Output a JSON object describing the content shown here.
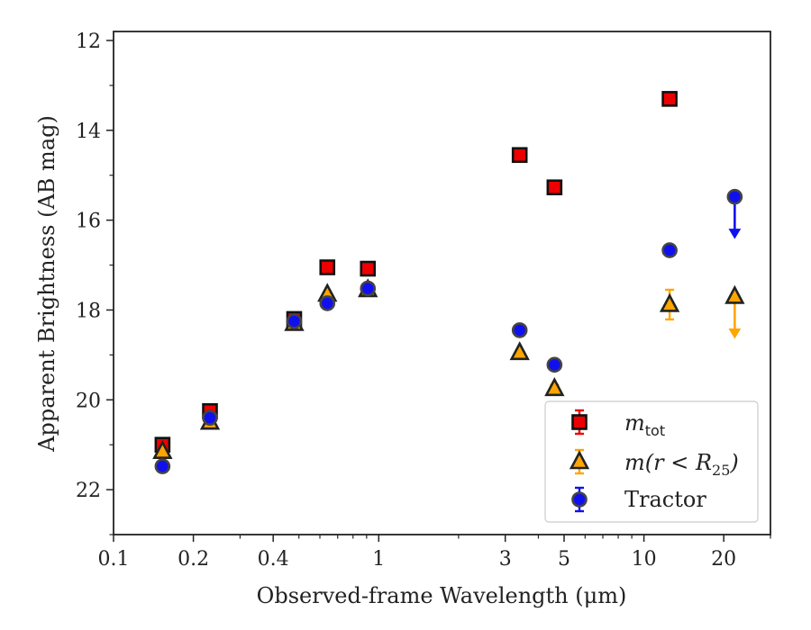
{
  "chart_data": {
    "type": "scatter",
    "xlabel": "Observed-frame Wavelength (μm)",
    "ylabel": "Apparent Brightness (AB mag)",
    "x_scale": "log",
    "xlim": [
      0.1,
      30
    ],
    "ylim": [
      23,
      11.8
    ],
    "y_inverted": true,
    "x_tick_labels": [
      {
        "value": 0.1,
        "label": "0.1"
      },
      {
        "value": 0.2,
        "label": "0.2"
      },
      {
        "value": 0.4,
        "label": "0.4"
      },
      {
        "value": 1,
        "label": "1"
      },
      {
        "value": 3,
        "label": "3"
      },
      {
        "value": 5,
        "label": "5"
      },
      {
        "value": 10,
        "label": "10"
      },
      {
        "value": 20,
        "label": "20"
      }
    ],
    "x_minor_ticks": [
      0.3,
      0.5,
      0.6,
      0.7,
      0.8,
      0.9,
      2,
      4,
      6,
      7,
      8,
      9,
      30
    ],
    "y_ticks": [
      12,
      14,
      16,
      18,
      20,
      22
    ],
    "y_minor_ticks": [
      13,
      15,
      17,
      19,
      21,
      23
    ],
    "grid": false,
    "legend_position": "bottom-right",
    "series": [
      {
        "name_base": "m",
        "name_sub": "tot",
        "marker": "square",
        "color": "#ee0000",
        "edge": "#111111",
        "points": [
          {
            "x": 0.153,
            "y": 21.0,
            "err": 0.05
          },
          {
            "x": 0.231,
            "y": 20.25,
            "err": 0.05
          },
          {
            "x": 0.48,
            "y": 18.2,
            "err": 0.03
          },
          {
            "x": 0.64,
            "y": 17.05,
            "err": 0.03
          },
          {
            "x": 0.91,
            "y": 17.08,
            "err": 0.03
          },
          {
            "x": 3.4,
            "y": 14.55,
            "err": 0.03
          },
          {
            "x": 4.6,
            "y": 15.27,
            "err": 0.03
          },
          {
            "x": 12.5,
            "y": 13.3,
            "err": 0.03
          }
        ]
      },
      {
        "name_prefix": "m(r < R",
        "name_sub": "25",
        "name_suffix": ")",
        "marker": "triangle",
        "color": "#ffa500",
        "edge": "#222222",
        "points": [
          {
            "x": 0.153,
            "y": 21.15,
            "err": 0.05
          },
          {
            "x": 0.231,
            "y": 20.5,
            "err": 0.05
          },
          {
            "x": 0.48,
            "y": 18.3,
            "err": 0.03
          },
          {
            "x": 0.64,
            "y": 17.65,
            "err": 0.03
          },
          {
            "x": 0.91,
            "y": 17.55,
            "err": 0.03
          },
          {
            "x": 3.4,
            "y": 18.95,
            "err": 0.05
          },
          {
            "x": 4.6,
            "y": 19.75,
            "err": 0.08
          },
          {
            "x": 12.5,
            "y": 17.88,
            "err": 0.33
          }
        ],
        "upper_limits": [
          {
            "x": 22,
            "y": 17.7
          }
        ]
      },
      {
        "name": "Tractor",
        "marker": "circle",
        "color": "#1010ee",
        "edge": "#444444",
        "points": [
          {
            "x": 0.153,
            "y": 21.48,
            "err": 0.05
          },
          {
            "x": 0.231,
            "y": 20.4,
            "err": 0.05
          },
          {
            "x": 0.48,
            "y": 18.25,
            "err": 0.03
          },
          {
            "x": 0.64,
            "y": 17.85,
            "err": 0.03
          },
          {
            "x": 0.91,
            "y": 17.52,
            "err": 0.03
          },
          {
            "x": 3.4,
            "y": 18.45,
            "err": 0.03
          },
          {
            "x": 4.6,
            "y": 19.22,
            "err": 0.03
          },
          {
            "x": 12.5,
            "y": 16.67,
            "err": 0.03
          }
        ],
        "upper_limits": [
          {
            "x": 22,
            "y": 15.48
          }
        ]
      }
    ]
  }
}
